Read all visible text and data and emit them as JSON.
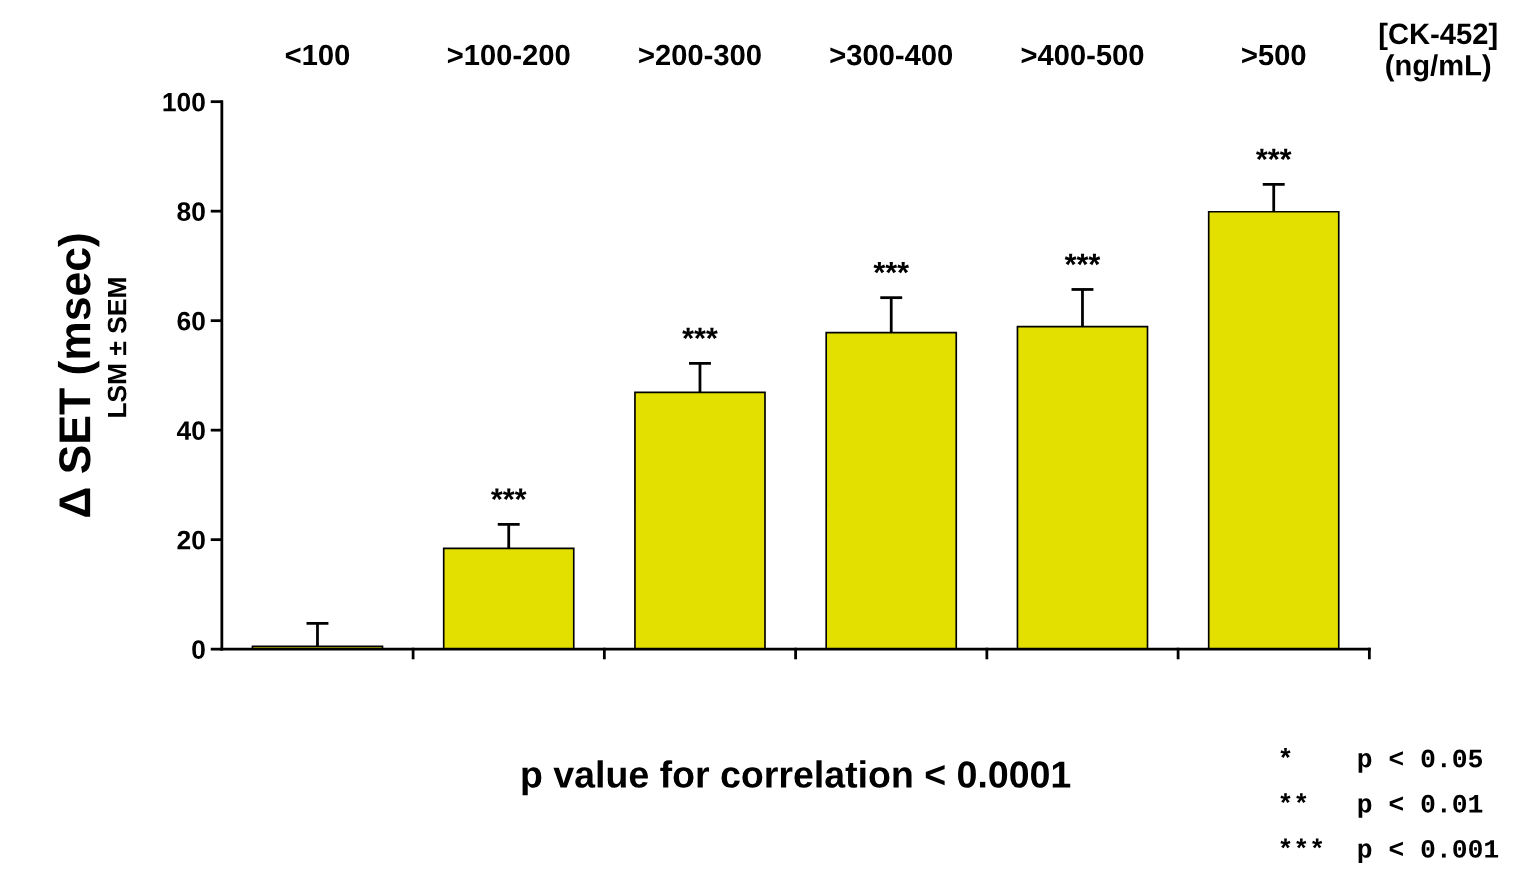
{
  "chart_data": {
    "type": "bar",
    "categories": [
      "<100",
      ">100-200",
      ">200-300",
      ">300-400",
      ">400-500",
      ">500"
    ],
    "values": [
      0.5,
      18.4,
      46.9,
      57.8,
      58.9,
      79.9
    ],
    "errors": [
      [
        0.5,
        4.7
      ],
      [
        18.4,
        22.8
      ],
      [
        46.9,
        52.2
      ],
      [
        57.8,
        64.2
      ],
      [
        58.9,
        65.7
      ],
      [
        79.9,
        84.9
      ]
    ],
    "value_labels": [
      null,
      "***",
      "***",
      "***",
      "***",
      "***"
    ],
    "color": "#e3e000",
    "xlabel": "[CK-452]\n(ng/mL)",
    "ylabel": "Δ SET (msec)",
    "ylim": [
      0,
      100
    ],
    "yticks": [
      0,
      20,
      40,
      60,
      80,
      100
    ],
    "grid": false,
    "annotations": [
      "LSM ± SEM",
      "p value for correlation < 0.0001",
      "*    p < 0.05",
      "**   p < 0.01",
      "***  p < 0.001"
    ]
  }
}
